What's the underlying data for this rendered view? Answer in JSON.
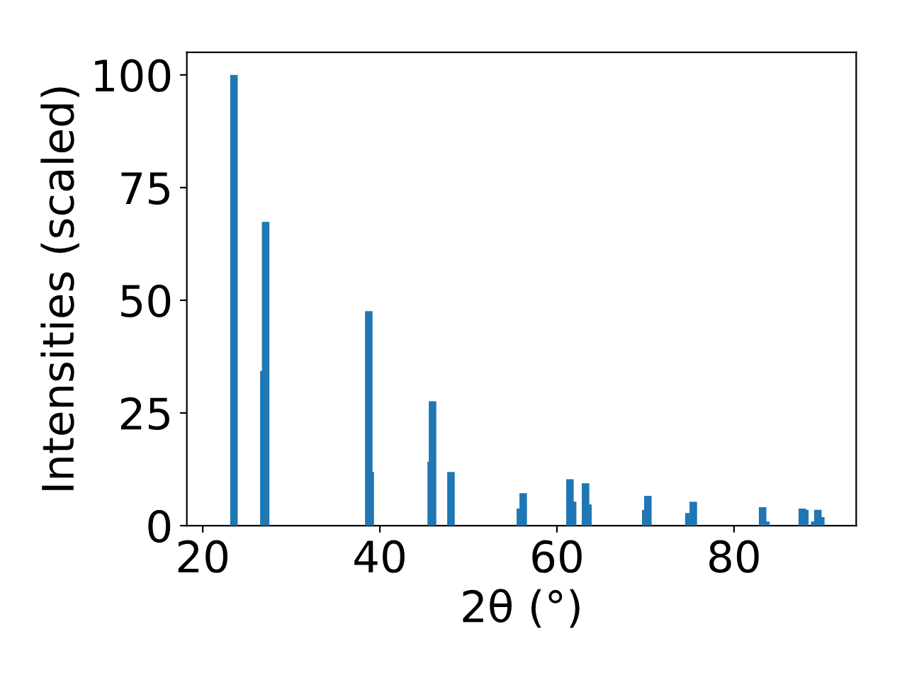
{
  "chart_data": {
    "type": "bar",
    "xlabel": "2θ (°)",
    "ylabel": "Intensities (scaled)",
    "x": [
      23.52,
      26.9,
      27.1,
      38.75,
      38.91,
      45.8,
      45.95,
      48.03,
      55.87,
      56.19,
      61.47,
      61.77,
      63.23,
      63.5,
      70.03,
      70.27,
      74.9,
      75.4,
      83.23,
      83.6,
      87.71,
      88.0,
      89.12,
      89.47,
      89.8
    ],
    "values": [
      100,
      34.3,
      67.4,
      47.6,
      11.9,
      14.2,
      27.6,
      11.9,
      3.8,
      7.2,
      10.3,
      5.3,
      9.4,
      4.7,
      3.5,
      6.6,
      2.8,
      5.3,
      4.1,
      0.9,
      3.8,
      3.5,
      0.9,
      3.5,
      1.9
    ],
    "color": "#1f77b4",
    "xlim": [
      18.2,
      93.8
    ],
    "ylim": [
      0,
      105
    ],
    "xticks": [
      20,
      40,
      60,
      80
    ],
    "yticks": [
      0,
      25,
      50,
      75,
      100
    ],
    "grid": false,
    "legend": false
  }
}
